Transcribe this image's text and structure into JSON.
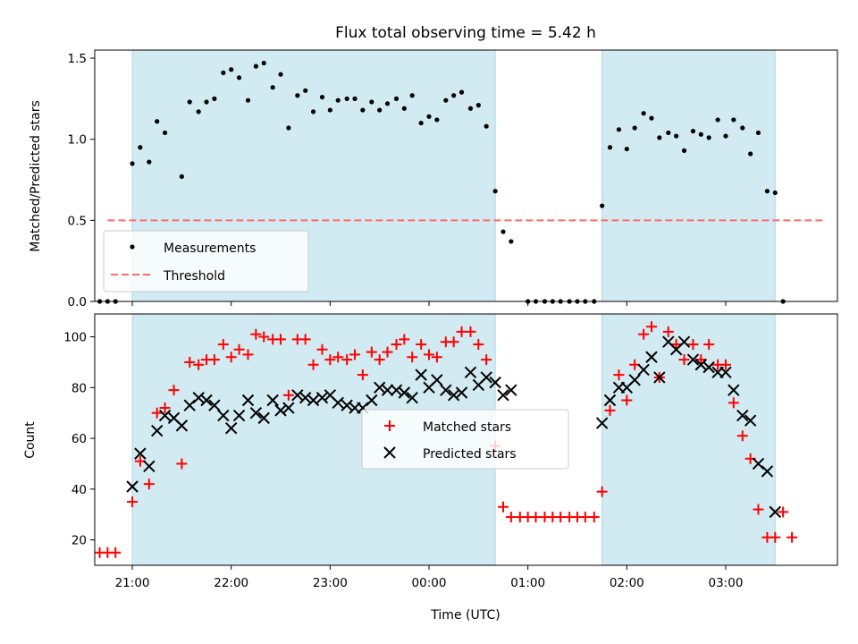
{
  "title": "Flux total observing time = 5.42 h",
  "colors": {
    "shade": "#add8e6",
    "measurement": "#000000",
    "threshold": "#ff6b6b",
    "matched": "#ff0000",
    "predicted": "#000000"
  },
  "chart_data": [
    {
      "type": "scatter",
      "ylabel": "Matched/Predicted stars",
      "xlim": [
        20.62,
        28.13
      ],
      "ylim": [
        0,
        1.55
      ],
      "yticks": [
        0.0,
        0.5,
        1.0,
        1.5
      ],
      "ytick_labels": [
        "0.0",
        "0.5",
        "1.0",
        "1.5"
      ],
      "shaded_intervals": [
        [
          21.0,
          24.67
        ],
        [
          25.75,
          27.5
        ]
      ],
      "threshold": {
        "name": "Threshold",
        "value": 0.5,
        "x_range": [
          20.75,
          28.0
        ],
        "style": "dashed"
      },
      "legend": {
        "placement": "lower-left",
        "entries": [
          "Measurements",
          "Threshold"
        ]
      },
      "series": [
        {
          "name": "Measurements",
          "marker": "dot",
          "x": [
            20.67,
            20.75,
            20.83,
            21.0,
            21.08,
            21.17,
            21.25,
            21.33,
            21.5,
            21.58,
            21.67,
            21.75,
            21.83,
            21.92,
            22.0,
            22.08,
            22.17,
            22.25,
            22.33,
            22.42,
            22.5,
            22.58,
            22.67,
            22.75,
            22.83,
            22.92,
            23.0,
            23.08,
            23.17,
            23.25,
            23.33,
            23.42,
            23.5,
            23.58,
            23.67,
            23.75,
            23.83,
            23.92,
            24.0,
            24.08,
            24.17,
            24.25,
            24.33,
            24.42,
            24.5,
            24.58,
            24.67,
            24.75,
            24.83,
            25.0,
            25.08,
            25.17,
            25.25,
            25.33,
            25.42,
            25.5,
            25.58,
            25.67,
            25.75,
            25.83,
            25.92,
            26.0,
            26.08,
            26.17,
            26.25,
            26.33,
            26.42,
            26.5,
            26.58,
            26.67,
            26.75,
            26.83,
            26.92,
            27.0,
            27.08,
            27.17,
            27.25,
            27.33,
            27.42,
            27.5,
            27.58
          ],
          "y": [
            0.0,
            0.0,
            0.0,
            0.85,
            0.95,
            0.86,
            1.11,
            1.04,
            0.77,
            1.23,
            1.17,
            1.23,
            1.25,
            1.41,
            1.43,
            1.38,
            1.24,
            1.45,
            1.47,
            1.32,
            1.4,
            1.07,
            1.27,
            1.3,
            1.17,
            1.26,
            1.18,
            1.24,
            1.25,
            1.25,
            1.18,
            1.23,
            1.18,
            1.22,
            1.25,
            1.19,
            1.27,
            1.1,
            1.14,
            1.12,
            1.24,
            1.27,
            1.29,
            1.19,
            1.21,
            1.08,
            0.68,
            0.43,
            0.37,
            0.0,
            0.0,
            0.0,
            0.0,
            0.0,
            0.0,
            0.0,
            0.0,
            0.0,
            0.59,
            0.95,
            1.06,
            0.94,
            1.07,
            1.16,
            1.13,
            1.01,
            1.04,
            1.02,
            0.93,
            1.05,
            1.03,
            1.01,
            1.12,
            1.02,
            1.12,
            1.07,
            0.91,
            1.04,
            0.68,
            0.67,
            0.0
          ]
        }
      ]
    },
    {
      "type": "scatter",
      "ylabel": "Count",
      "xlabel": "Time (UTC)",
      "xlim": [
        20.62,
        28.13
      ],
      "ylim": [
        10,
        109
      ],
      "yticks": [
        20,
        40,
        60,
        80,
        100
      ],
      "ytick_labels": [
        "20",
        "40",
        "60",
        "80",
        "100"
      ],
      "xticks": [
        21,
        22,
        23,
        24,
        25,
        26,
        27
      ],
      "xtick_labels": [
        "21:00",
        "22:00",
        "23:00",
        "00:00",
        "01:00",
        "02:00",
        "03:00"
      ],
      "shaded_intervals": [
        [
          21.0,
          24.67
        ],
        [
          25.75,
          27.5
        ]
      ],
      "legend": {
        "placement": "center",
        "entries": [
          "Matched stars",
          "Predicted stars"
        ]
      },
      "series": [
        {
          "name": "Matched stars",
          "marker": "plus",
          "x": [
            20.67,
            20.75,
            20.83,
            21.0,
            21.08,
            21.17,
            21.25,
            21.33,
            21.42,
            21.5,
            21.58,
            21.67,
            21.75,
            21.83,
            21.92,
            22.0,
            22.08,
            22.17,
            22.25,
            22.33,
            22.42,
            22.5,
            22.58,
            22.67,
            22.75,
            22.83,
            22.92,
            23.0,
            23.08,
            23.17,
            23.25,
            23.33,
            23.42,
            23.5,
            23.58,
            23.67,
            23.75,
            23.83,
            23.92,
            24.0,
            24.08,
            24.17,
            24.25,
            24.33,
            24.42,
            24.5,
            24.58,
            24.67,
            24.75,
            24.83,
            24.92,
            25.0,
            25.08,
            25.17,
            25.25,
            25.33,
            25.42,
            25.5,
            25.58,
            25.67,
            25.75,
            25.83,
            25.92,
            26.0,
            26.08,
            26.17,
            26.25,
            26.33,
            26.42,
            26.5,
            26.58,
            26.67,
            26.75,
            26.83,
            26.92,
            27.0,
            27.08,
            27.17,
            27.25,
            27.33,
            27.42,
            27.5,
            27.58,
            27.67
          ],
          "y": [
            15,
            15,
            15,
            35,
            51,
            42,
            70,
            72,
            79,
            50,
            90,
            89,
            91,
            91,
            97,
            92,
            95,
            93,
            101,
            100,
            99,
            99,
            77,
            99,
            99,
            89,
            95,
            91,
            92,
            91,
            93,
            85,
            94,
            91,
            94,
            97,
            99,
            92,
            97,
            93,
            92,
            98,
            98,
            102,
            102,
            97,
            91,
            57,
            33,
            29,
            29,
            29,
            29,
            29,
            29,
            29,
            29,
            29,
            29,
            29,
            39,
            71,
            85,
            75,
            89,
            101,
            104,
            84,
            102,
            97,
            91,
            97,
            91,
            97,
            89,
            89,
            74,
            61,
            52,
            32,
            21,
            21,
            31,
            21
          ]
        },
        {
          "name": "Predicted stars",
          "marker": "x",
          "x": [
            21.0,
            21.08,
            21.17,
            21.25,
            21.33,
            21.42,
            21.5,
            21.58,
            21.67,
            21.75,
            21.83,
            21.92,
            22.0,
            22.08,
            22.17,
            22.25,
            22.33,
            22.42,
            22.5,
            22.58,
            22.67,
            22.75,
            22.83,
            22.92,
            23.0,
            23.08,
            23.17,
            23.25,
            23.33,
            23.42,
            23.5,
            23.58,
            23.67,
            23.75,
            23.83,
            23.92,
            24.0,
            24.08,
            24.17,
            24.25,
            24.33,
            24.42,
            24.5,
            24.58,
            24.67,
            24.75,
            24.83,
            25.75,
            25.83,
            25.92,
            26.0,
            26.08,
            26.17,
            26.25,
            26.33,
            26.42,
            26.5,
            26.58,
            26.67,
            26.75,
            26.83,
            26.92,
            27.0,
            27.08,
            27.17,
            27.25,
            27.33,
            27.42,
            27.5
          ],
          "y": [
            41,
            54,
            49,
            63,
            69,
            68,
            65,
            73,
            76,
            75,
            73,
            69,
            64,
            69,
            75,
            70,
            68,
            75,
            71,
            72,
            77,
            76,
            75,
            76,
            77,
            74,
            73,
            72,
            72,
            75,
            80,
            79,
            79,
            78,
            76,
            85,
            80,
            83,
            79,
            77,
            78,
            86,
            81,
            84,
            82,
            77,
            79,
            66,
            75,
            80,
            80,
            83,
            87,
            92,
            84,
            98,
            95,
            98,
            91,
            89,
            88,
            86,
            86,
            79,
            69,
            67,
            50,
            47,
            31
          ]
        }
      ]
    }
  ]
}
